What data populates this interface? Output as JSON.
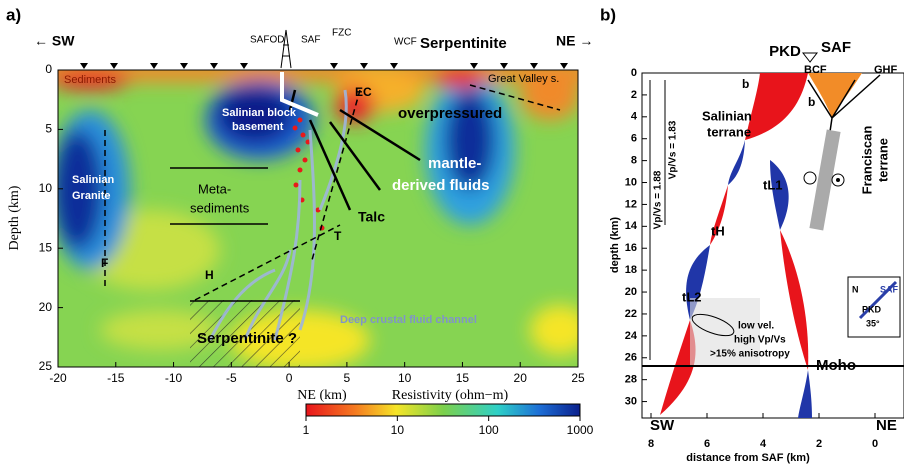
{
  "panel_a": {
    "label": "a)",
    "dir_left": "← SW",
    "dir_right": "NE →",
    "xlabel": "NE (km)",
    "ylabel": "Depth (km)",
    "xlim": [
      -20,
      25
    ],
    "ylim": [
      0,
      25
    ],
    "xticks": [
      -20,
      -15,
      -10,
      -5,
      0,
      5,
      10,
      15,
      20,
      25
    ],
    "yticks": [
      0,
      5,
      10,
      15,
      20,
      25
    ],
    "colorbar": {
      "label": "Resistivity (ohm−m)",
      "lim": [
        1,
        1000
      ],
      "ticks": [
        1,
        10,
        100,
        1000
      ]
    },
    "annotations": [
      "SAFOD",
      "SAF",
      "FZC",
      "WCF",
      "Serpentinite",
      "Sediments",
      "Great Valley s.",
      "Salinian block",
      "basement",
      "EC",
      "overpressured",
      "mantle-",
      "derived fluids",
      "Salinian",
      "Granite",
      "Meta-",
      "sediments",
      "Talc",
      "T",
      "F",
      "H",
      "Serpentinite ?",
      "Deep crustal fluid channel"
    ]
  },
  "panel_b": {
    "label": "b)",
    "xlabel": "distance from SAF (km)",
    "ylabel": "depth (km)",
    "xlim": [
      8,
      -1
    ],
    "ylim": [
      0,
      31.5
    ],
    "xticks": [
      8,
      6,
      4,
      2,
      0
    ],
    "yticks": [
      0,
      2,
      4,
      6,
      8,
      10,
      12,
      14,
      16,
      18,
      20,
      22,
      24,
      26,
      28,
      30
    ],
    "annotations": [
      "PKD",
      "SAF",
      "BCF",
      "GHF",
      "b",
      "b",
      "Salinian",
      "terrane",
      "Franciscan",
      "terrane",
      "Vp/Vs = 1.88",
      "Vp/Vs = 1.83",
      "tL1",
      "tH",
      "tL2",
      "low vel.",
      "high Vp/Vs",
      ">15% anisotropy",
      "Moho",
      "SW",
      "NE",
      "N",
      "PKD",
      "SAF",
      "35°"
    ]
  }
}
